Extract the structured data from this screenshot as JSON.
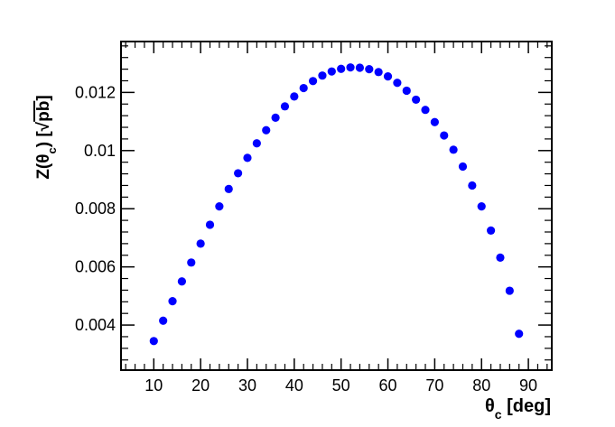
{
  "chart_data": {
    "type": "scatter",
    "xlabel": {
      "base": "θ",
      "sub": "c",
      "unit": " [deg]"
    },
    "ylabel": {
      "base": "Z(θ",
      "sub": "c",
      "close": ") [",
      "root": "pb",
      "end": "]"
    },
    "xlim": [
      3,
      95
    ],
    "ylim": [
      0.00245,
      0.01375
    ],
    "x_ticks": [
      10,
      20,
      30,
      40,
      50,
      60,
      70,
      80,
      90
    ],
    "x_tick_labels": [
      "10",
      "20",
      "30",
      "40",
      "50",
      "60",
      "70",
      "80",
      "90"
    ],
    "y_ticks": [
      0.004,
      0.006,
      0.008,
      0.01,
      0.012
    ],
    "y_tick_labels": [
      "0.004",
      "0.006",
      "0.008",
      "0.01",
      "0.012"
    ],
    "grid": false,
    "marker_color": "#0000ff",
    "series": [
      {
        "x": [
          10,
          12,
          14,
          16,
          18,
          20,
          22,
          24,
          26,
          28,
          30,
          32,
          34,
          36,
          38,
          40,
          42,
          44,
          46,
          48,
          50,
          52,
          54,
          56,
          58,
          60,
          62,
          64,
          66,
          68,
          70,
          72,
          74,
          76,
          78,
          80,
          82,
          84,
          86,
          88
        ],
        "y": [
          0.00345,
          0.00415,
          0.00482,
          0.0055,
          0.00615,
          0.0068,
          0.00745,
          0.00808,
          0.00868,
          0.00922,
          0.00975,
          0.01025,
          0.0107,
          0.01113,
          0.01152,
          0.01186,
          0.01215,
          0.01239,
          0.01258,
          0.01272,
          0.01281,
          0.01286,
          0.01285,
          0.0128,
          0.0127,
          0.01255,
          0.01233,
          0.01206,
          0.01175,
          0.0114,
          0.01098,
          0.01052,
          0.01003,
          0.00945,
          0.0088,
          0.00808,
          0.00725,
          0.00632,
          0.00518,
          0.0037
        ]
      }
    ]
  }
}
